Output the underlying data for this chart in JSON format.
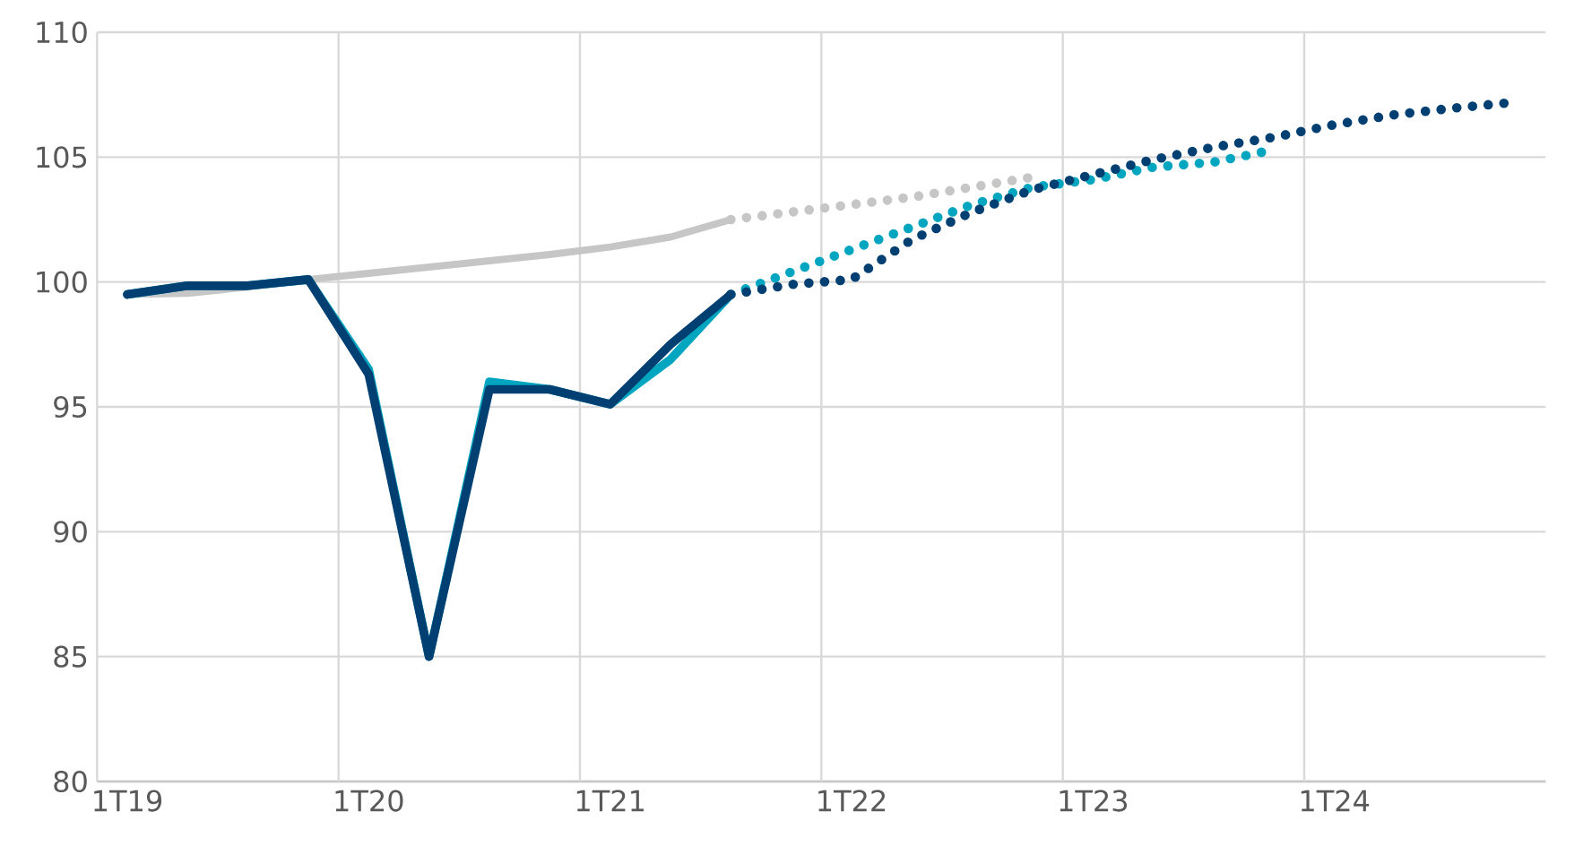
{
  "chart_data": {
    "type": "line",
    "ylim": [
      80,
      110
    ],
    "categories": [
      "1T19",
      null,
      null,
      null,
      "1T20",
      null,
      null,
      null,
      "1T21",
      null,
      null,
      null,
      "1T22",
      null,
      null,
      null,
      "1T23",
      null,
      null,
      null,
      "1T24",
      null,
      null,
      null
    ],
    "yticks": [
      80,
      85,
      90,
      95,
      100,
      105,
      110
    ],
    "grid": true,
    "marker": "none",
    "series": [
      {
        "color": "#c6c6c6",
        "line_style": "solid",
        "values": [
          99.5,
          99.55,
          99.8,
          100.1,
          100.35,
          100.6,
          100.85,
          101.1,
          101.4,
          101.8,
          102.5,
          null,
          null,
          null,
          null,
          null,
          null,
          null,
          null,
          null,
          null,
          null,
          null,
          null
        ]
      },
      {
        "color": "#c6c6c6",
        "line_style": "dotted",
        "values": [
          null,
          null,
          null,
          null,
          null,
          null,
          null,
          null,
          null,
          null,
          102.5,
          102.8,
          103.1,
          103.4,
          103.8,
          104.2,
          null,
          null,
          null,
          null,
          null,
          null,
          null,
          null
        ]
      },
      {
        "color": "#00a5c0",
        "line_style": "solid",
        "values": [
          99.5,
          99.85,
          99.85,
          100.1,
          96.5,
          85.0,
          96.0,
          95.7,
          95.1,
          96.9,
          99.5,
          null,
          null,
          null,
          null,
          null,
          null,
          null,
          null,
          null,
          null,
          null,
          null,
          null
        ]
      },
      {
        "color": "#00a5c0",
        "line_style": "dotted",
        "values": [
          null,
          null,
          null,
          null,
          null,
          null,
          null,
          null,
          null,
          null,
          99.5,
          100.4,
          101.3,
          102.2,
          103.1,
          103.8,
          104.1,
          104.6,
          104.8,
          105.3,
          null,
          null,
          null,
          null
        ]
      },
      {
        "color": "#003f72",
        "line_style": "solid",
        "values": [
          99.5,
          99.85,
          99.85,
          100.1,
          96.3,
          85.0,
          95.7,
          95.7,
          95.1,
          97.5,
          99.5,
          null,
          null,
          null,
          null,
          null,
          null,
          null,
          null,
          null,
          null,
          null,
          null,
          null
        ]
      },
      {
        "color": "#003f72",
        "line_style": "dotted",
        "values": [
          null,
          null,
          null,
          null,
          null,
          null,
          null,
          null,
          null,
          null,
          99.5,
          99.9,
          100.1,
          101.7,
          102.8,
          103.7,
          104.3,
          104.9,
          105.4,
          105.8,
          106.3,
          106.7,
          106.97,
          107.2
        ]
      }
    ]
  }
}
